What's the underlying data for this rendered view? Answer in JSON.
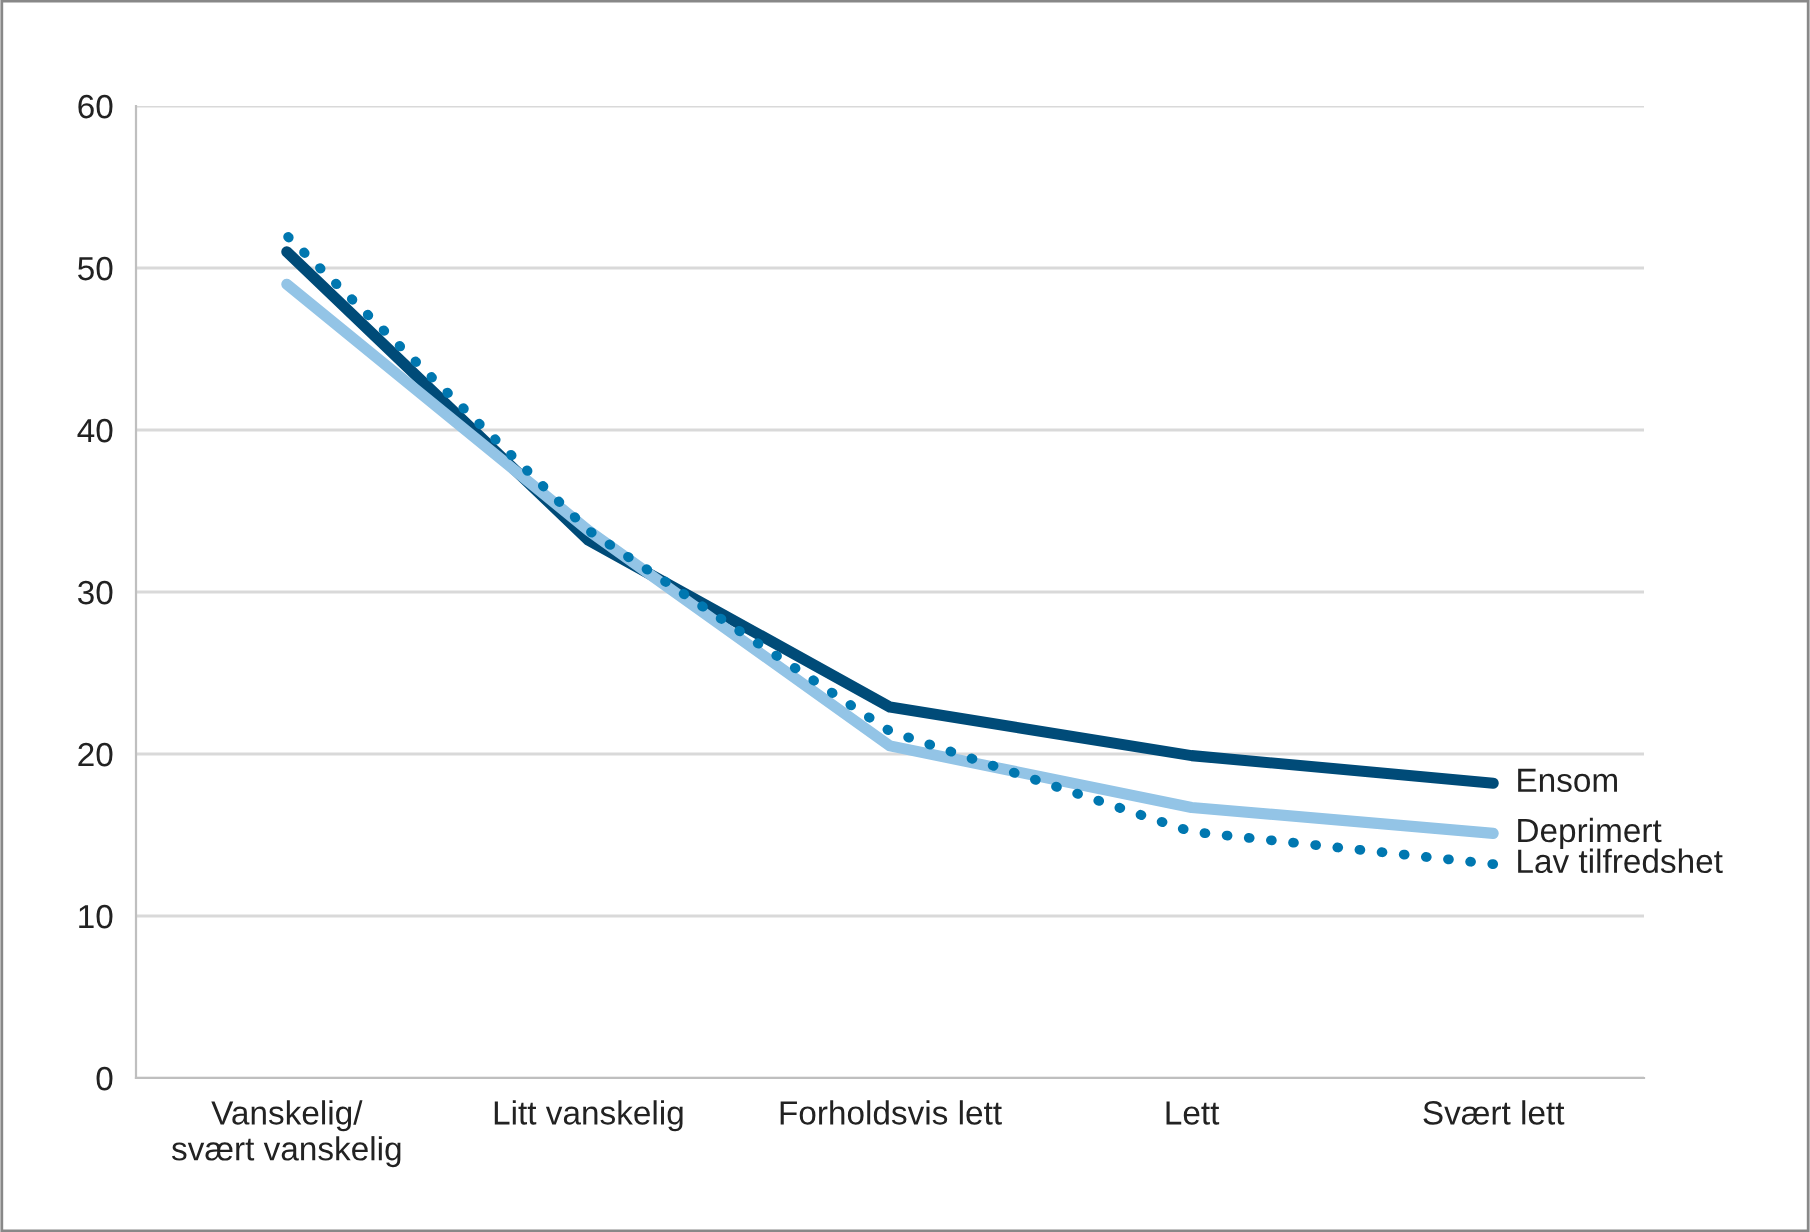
{
  "chart_data": {
    "type": "line",
    "categories": [
      "Vanskelig/\nsvært vanskelig",
      "Litt vanskelig",
      "Forholdsvis lett",
      "Lett",
      "Svært lett"
    ],
    "series": [
      {
        "name": "Ensom",
        "color": "#004b78",
        "line_style": "solid",
        "values": [
          51.0,
          33.2,
          22.9,
          19.9,
          18.2
        ]
      },
      {
        "name": "Deprimert",
        "color": "#93c4e6",
        "line_style": "solid",
        "values": [
          49.0,
          33.8,
          20.5,
          16.7,
          15.1
        ]
      },
      {
        "name": "Lav tilfredshet",
        "color": "#0077b0",
        "line_style": "dotted",
        "values": [
          52.0,
          33.8,
          21.4,
          15.2,
          13.2
        ]
      }
    ],
    "ylim": [
      0,
      60
    ],
    "yticks": [
      0,
      10,
      20,
      30,
      40,
      50,
      60
    ],
    "grid": "y",
    "marker": "none"
  }
}
